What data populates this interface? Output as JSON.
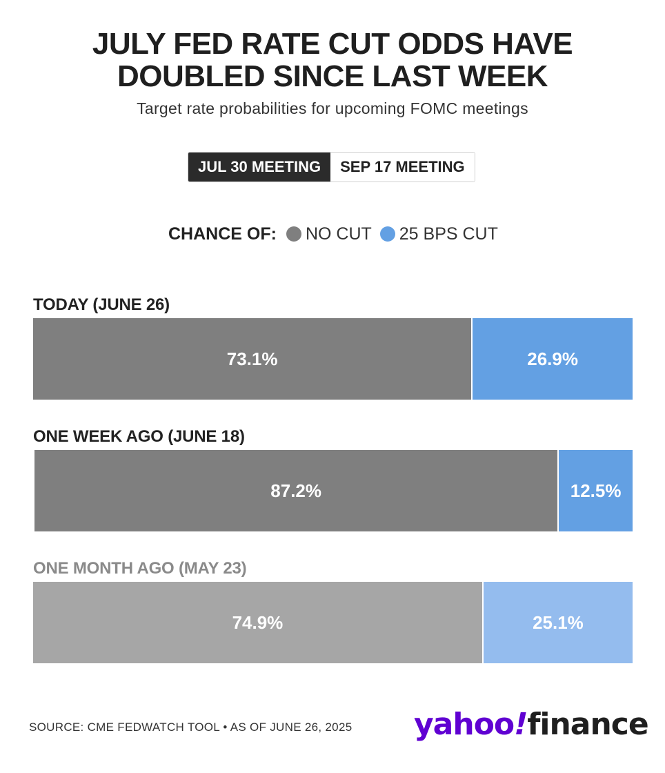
{
  "title_line1": "JULY FED RATE CUT ODDS HAVE",
  "title_line2": "DOUBLED SINCE LAST WEEK",
  "subtitle": "Target rate probabilities for upcoming FOMC meetings",
  "tabs": [
    {
      "label": "JUL 30 MEETING",
      "active": true
    },
    {
      "label": "SEP 17 MEETING",
      "active": false
    }
  ],
  "legend": {
    "heading": "CHANCE OF:",
    "items": [
      {
        "label": "NO CUT",
        "color": "#7f7f7f"
      },
      {
        "label": "25 BPS CUT",
        "color": "#63a0e3"
      }
    ]
  },
  "chart_data": {
    "type": "bar",
    "orientation": "horizontal",
    "stacked": true,
    "categories": [
      "TODAY (JUNE 26)",
      "ONE WEEK AGO (JUNE 18)",
      "ONE MONTH AGO (MAY 23)"
    ],
    "series": [
      {
        "name": "NO CUT",
        "values": [
          73.1,
          87.2,
          74.9
        ],
        "labels": [
          "73.1%",
          "87.2%",
          "74.9%"
        ],
        "colors": [
          "#7f7f7f",
          "#7f7f7f",
          "#a6a6a6"
        ]
      },
      {
        "name": "25 BPS CUT",
        "values": [
          26.9,
          12.5,
          25.1
        ],
        "labels": [
          "26.9%",
          "12.5%",
          "25.1%"
        ],
        "colors": [
          "#63a0e3",
          "#63a0e3",
          "#94bcee"
        ]
      }
    ],
    "xlim": [
      0,
      100
    ]
  },
  "footer": {
    "source": "SOURCE: CME FEDWATCH TOOL • AS OF JUNE 26, 2025",
    "logo_part1": "yahoo",
    "logo_part2": "!",
    "logo_part3": "finance"
  }
}
